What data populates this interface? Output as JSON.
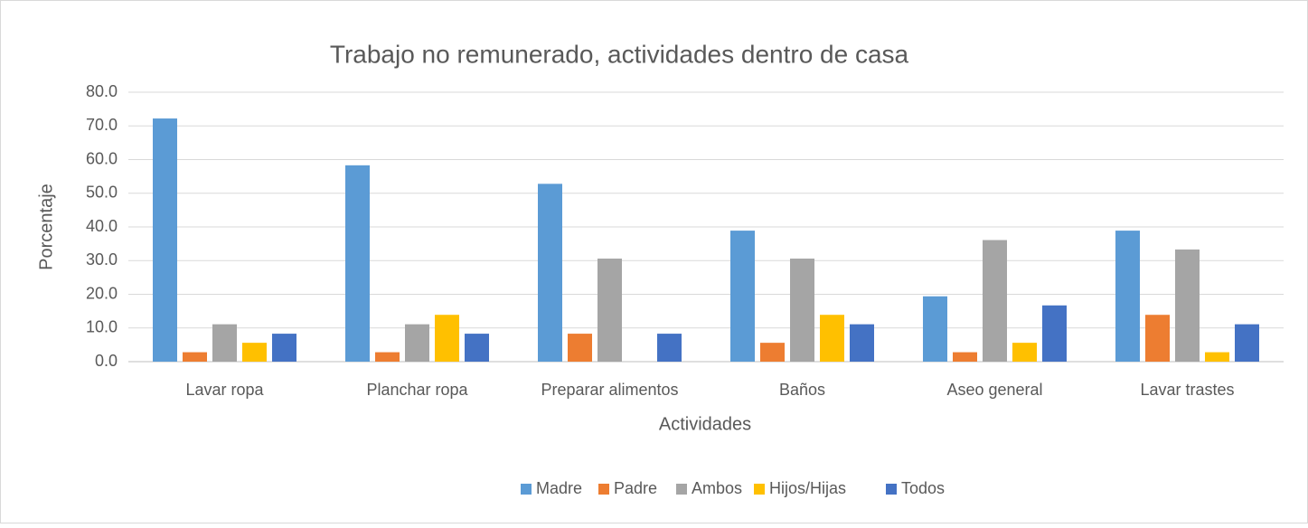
{
  "chart_data": {
    "type": "bar",
    "title": "Trabajo no remunerado, actividades dentro de casa",
    "x_label": "Actividades",
    "y_label": "Porcentaje",
    "categories": [
      "Lavar ropa",
      "Planchar ropa",
      "Preparar alimentos",
      "Baños",
      "Aseo general",
      "Lavar trastes"
    ],
    "series": [
      {
        "name": "Madre",
        "color": "#5b9bd5",
        "values": [
          72.2,
          58.3,
          52.8,
          38.9,
          19.4,
          38.9
        ]
      },
      {
        "name": "Padre",
        "color": "#ed7d31",
        "values": [
          2.8,
          2.8,
          8.3,
          5.6,
          2.8,
          13.9
        ]
      },
      {
        "name": "Ambos",
        "color": "#a5a5a5",
        "values": [
          11.1,
          11.1,
          30.6,
          30.6,
          36.1,
          33.3
        ]
      },
      {
        "name": "Hijos/Hijas",
        "color": "#ffc000",
        "values": [
          5.6,
          13.9,
          0,
          13.9,
          5.6,
          2.8
        ]
      },
      {
        "name": "Todos",
        "color": "#4472c4",
        "values": [
          8.3,
          8.3,
          8.3,
          11.1,
          16.7,
          11.1
        ]
      }
    ],
    "ylim": [
      0,
      80
    ],
    "yticks": [
      {
        "value": 0,
        "label": "0.0"
      },
      {
        "value": 10,
        "label": "10.0"
      },
      {
        "value": 20,
        "label": "20.0"
      },
      {
        "value": 30,
        "label": "30.0"
      },
      {
        "value": 40,
        "label": "40.0"
      },
      {
        "value": 50,
        "label": "50.0"
      },
      {
        "value": 60,
        "label": "60.0"
      },
      {
        "value": 70,
        "label": "70.0"
      },
      {
        "value": 80,
        "label": "80.0"
      }
    ],
    "grid": true,
    "legend": "bottom"
  }
}
